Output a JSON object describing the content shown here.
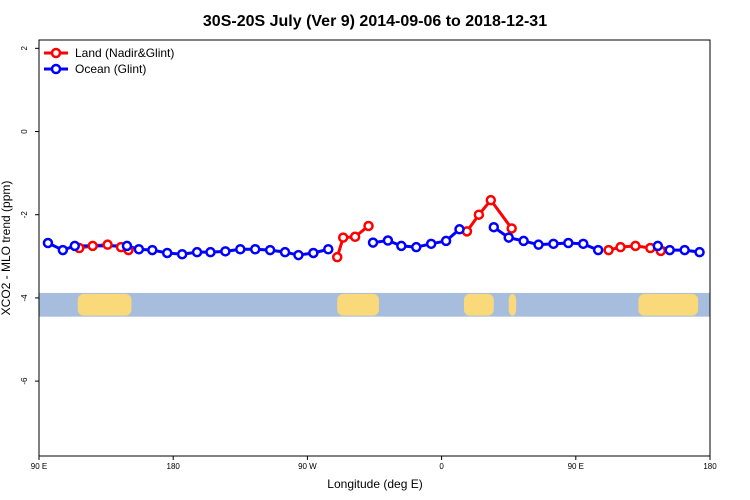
{
  "chart_data": {
    "type": "line",
    "title": "30S-20S July (Ver 9)   2014-09-06 to 2018-12-31",
    "xlabel": "Longitude (deg E)",
    "ylabel": "XCO2 - MLO trend (ppm)",
    "xlim": [
      90,
      540
    ],
    "ylim": [
      -7.8,
      2.2
    ],
    "x_ticks": [
      {
        "value": 90,
        "label": "90 E"
      },
      {
        "value": 180,
        "label": "180"
      },
      {
        "value": 270,
        "label": "90 W"
      },
      {
        "value": 360,
        "label": "0"
      },
      {
        "value": 450,
        "label": "90 E"
      },
      {
        "value": 540,
        "label": "180"
      }
    ],
    "y_ticks": [
      {
        "value": 2,
        "label": "2"
      },
      {
        "value": 0,
        "label": "0"
      },
      {
        "value": -2,
        "label": "-2"
      },
      {
        "value": -4,
        "label": "-4"
      },
      {
        "value": -6,
        "label": "-6"
      }
    ],
    "series": [
      {
        "name": "Land (Nadir&Glint)",
        "color": "#ff0000",
        "segments": [
          [
            [
              117,
              -2.8
            ],
            [
              126,
              -2.75
            ],
            [
              136,
              -2.72
            ],
            [
              145,
              -2.78
            ],
            [
              150,
              -2.85
            ]
          ],
          [
            [
              290,
              -3.02
            ],
            [
              294,
              -2.55
            ],
            [
              302,
              -2.53
            ],
            [
              311,
              -2.27
            ]
          ],
          [
            [
              377,
              -2.4
            ],
            [
              385,
              -2.0
            ],
            [
              393,
              -1.65
            ],
            [
              407,
              -2.33
            ]
          ],
          [
            [
              472,
              -2.85
            ],
            [
              480,
              -2.78
            ],
            [
              490,
              -2.75
            ],
            [
              500,
              -2.8
            ],
            [
              507,
              -2.87
            ]
          ]
        ]
      },
      {
        "name": "Ocean (Glint)",
        "color": "#0000ff",
        "segments": [
          [
            [
              96,
              -2.68
            ],
            [
              106,
              -2.85
            ],
            [
              114,
              -2.75
            ],
            [
              149,
              -2.75
            ],
            [
              157,
              -2.83
            ],
            [
              166,
              -2.85
            ],
            [
              176,
              -2.92
            ],
            [
              186,
              -2.95
            ],
            [
              196,
              -2.9
            ],
            [
              205,
              -2.9
            ],
            [
              215,
              -2.88
            ],
            [
              225,
              -2.83
            ],
            [
              235,
              -2.83
            ],
            [
              245,
              -2.85
            ],
            [
              255,
              -2.9
            ],
            [
              264,
              -2.97
            ],
            [
              274,
              -2.92
            ],
            [
              284,
              -2.83
            ]
          ],
          [
            [
              314,
              -2.67
            ],
            [
              324,
              -2.62
            ],
            [
              333,
              -2.75
            ],
            [
              343,
              -2.78
            ],
            [
              353,
              -2.7
            ],
            [
              363,
              -2.63
            ],
            [
              372,
              -2.35
            ]
          ],
          [
            [
              395,
              -2.3
            ],
            [
              405,
              -2.55
            ],
            [
              415,
              -2.63
            ],
            [
              425,
              -2.72
            ],
            [
              435,
              -2.7
            ],
            [
              445,
              -2.68
            ],
            [
              455,
              -2.7
            ],
            [
              465,
              -2.85
            ]
          ],
          [
            [
              505,
              -2.75
            ],
            [
              513,
              -2.85
            ],
            [
              523,
              -2.85
            ],
            [
              533,
              -2.9
            ]
          ]
        ]
      }
    ],
    "legend_position": "top-left",
    "map_strip": {
      "y_range": [
        -4.45,
        -3.88
      ],
      "ocean_color": "#a7bddd",
      "land_color": "#fad97a",
      "land_spans": [
        [
          116,
          152
        ],
        [
          290,
          318
        ],
        [
          375,
          395
        ],
        [
          405,
          410
        ],
        [
          492,
          532
        ]
      ]
    }
  }
}
